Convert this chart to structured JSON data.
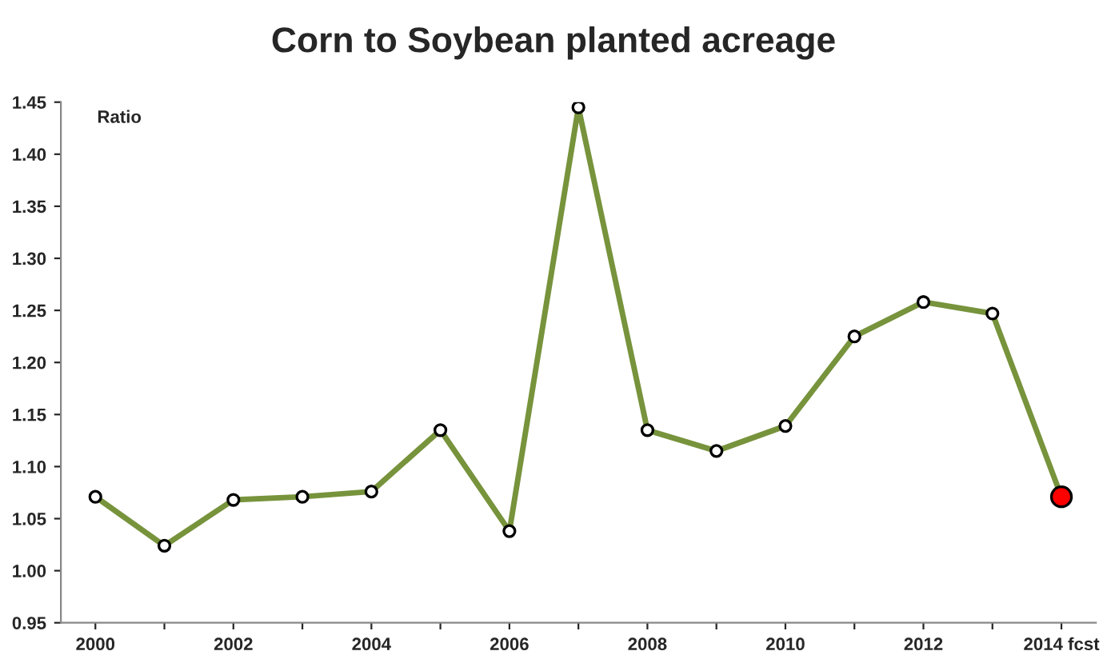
{
  "chart_data": {
    "type": "line",
    "title": "Corn to Soybean planted acreage",
    "ylabel": "Ratio",
    "categories": [
      "2000",
      null,
      "2002",
      null,
      "2004",
      null,
      "2006",
      null,
      "2008",
      null,
      "2010",
      null,
      "2012",
      null,
      "2014 fcst"
    ],
    "series": [
      {
        "color": "#77933c",
        "colors": [
          "#ffffff",
          "#ffffff",
          "#ffffff",
          "#ffffff",
          "#ffffff",
          "#ffffff",
          "#ffffff",
          "#ffffff",
          "#ffffff",
          "#ffffff",
          "#ffffff",
          "#ffffff",
          "#ffffff",
          "#ffffff",
          "#ff0000"
        ],
        "values": [
          1.071,
          1.024,
          1.068,
          1.071,
          1.076,
          1.135,
          1.038,
          1.445,
          1.135,
          1.115,
          1.139,
          1.225,
          1.258,
          1.247,
          1.071
        ]
      }
    ],
    "ylim": [
      0.95,
      1.45
    ],
    "yticks": [
      {
        "value": 0.95,
        "label": "0.95"
      },
      {
        "value": 1.0,
        "label": "1.00"
      },
      {
        "value": 1.05,
        "label": "1.05"
      },
      {
        "value": 1.1,
        "label": "1.10"
      },
      {
        "value": 1.15,
        "label": "1.15"
      },
      {
        "value": 1.2,
        "label": "1.20"
      },
      {
        "value": 1.25,
        "label": "1.25"
      },
      {
        "value": 1.3,
        "label": "1.30"
      },
      {
        "value": 1.35,
        "label": "1.35"
      },
      {
        "value": 1.4,
        "label": "1.40"
      },
      {
        "value": 1.45,
        "label": "1.45"
      }
    ],
    "grid": false,
    "legend": false,
    "marker": "circle",
    "line_style": "solid"
  }
}
